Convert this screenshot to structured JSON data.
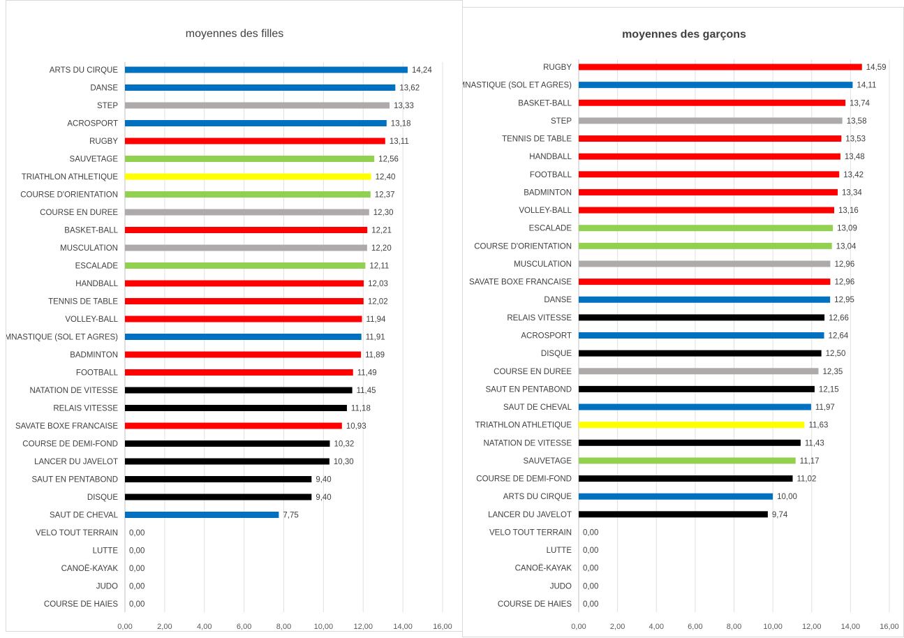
{
  "palette": {
    "red": "#ff0000",
    "blue": "#0070c0",
    "gray": "#aeaaaa",
    "green": "#92d050",
    "yellow": "#ffff00",
    "black": "#000000"
  },
  "chart_data": [
    {
      "type": "bar",
      "orientation": "horizontal",
      "title": "moyennes des filles",
      "xlim": [
        0,
        16
      ],
      "ticks": [
        "0,00",
        "2,00",
        "4,00",
        "6,00",
        "8,00",
        "10,00",
        "12,00",
        "14,00",
        "16,00"
      ],
      "grid": true,
      "categories": [
        "ARTS DU CIRQUE",
        "DANSE",
        "STEP",
        "ACROSPORT",
        "RUGBY",
        "SAUVETAGE",
        "TRIATHLON ATHLETIQUE",
        "COURSE D'ORIENTATION",
        "COURSE EN DUREE",
        "BASKET-BALL",
        "MUSCULATION",
        "ESCALADE",
        "HANDBALL",
        "TENNIS DE TABLE",
        "VOLLEY-BALL",
        "GYMNASTIQUE (SOL ET AGRES)",
        "BADMINTON",
        "FOOTBALL",
        "NATATION DE VITESSE",
        "RELAIS VITESSE",
        "SAVATE BOXE FRANCAISE",
        "COURSE DE DEMI-FOND",
        "LANCER DU JAVELOT",
        "SAUT EN PENTABOND",
        "DISQUE",
        "SAUT DE CHEVAL",
        "VELO TOUT TERRAIN",
        "LUTTE",
        "CANOË-KAYAK",
        "JUDO",
        "COURSE DE HAIES"
      ],
      "values": [
        14.24,
        13.62,
        13.33,
        13.18,
        13.11,
        12.56,
        12.4,
        12.37,
        12.3,
        12.21,
        12.2,
        12.11,
        12.03,
        12.02,
        11.94,
        11.91,
        11.89,
        11.49,
        11.45,
        11.18,
        10.93,
        10.32,
        10.3,
        9.4,
        9.4,
        7.75,
        0,
        0,
        0,
        0,
        0
      ],
      "labels": [
        "14,24",
        "13,62",
        "13,33",
        "13,18",
        "13,11",
        "12,56",
        "12,40",
        "12,37",
        "12,30",
        "12,21",
        "12,20",
        "12,11",
        "12,03",
        "12,02",
        "11,94",
        "11,91",
        "11,89",
        "11,49",
        "11,45",
        "11,18",
        "10,93",
        "10,32",
        "10,30",
        "9,40",
        "9,40",
        "7,75",
        "0,00",
        "0,00",
        "0,00",
        "0,00",
        "0,00"
      ],
      "colors": [
        "blue",
        "blue",
        "gray",
        "blue",
        "red",
        "green",
        "yellow",
        "green",
        "gray",
        "red",
        "gray",
        "green",
        "red",
        "red",
        "red",
        "blue",
        "red",
        "red",
        "black",
        "black",
        "red",
        "black",
        "black",
        "black",
        "black",
        "blue",
        "black",
        "black",
        "black",
        "black",
        "black"
      ]
    },
    {
      "type": "bar",
      "orientation": "horizontal",
      "title": "moyennes des garçons",
      "xlim": [
        0,
        16
      ],
      "ticks": [
        "0,00",
        "2,00",
        "4,00",
        "6,00",
        "8,00",
        "10,00",
        "12,00",
        "14,00",
        "16,00"
      ],
      "grid": true,
      "categories": [
        "RUGBY",
        "GYMNASTIQUE (SOL ET AGRES)",
        "BASKET-BALL",
        "STEP",
        "TENNIS DE TABLE",
        "HANDBALL",
        "FOOTBALL",
        "BADMINTON",
        "VOLLEY-BALL",
        "ESCALADE",
        "COURSE D'ORIENTATION",
        "MUSCULATION",
        "SAVATE BOXE FRANCAISE",
        "DANSE",
        "RELAIS VITESSE",
        "ACROSPORT",
        "DISQUE",
        "COURSE EN DUREE",
        "SAUT EN PENTABOND",
        "SAUT DE CHEVAL",
        "TRIATHLON ATHLETIQUE",
        "NATATION DE VITESSE",
        "SAUVETAGE",
        "COURSE DE DEMI-FOND",
        "ARTS DU CIRQUE",
        "LANCER DU JAVELOT",
        "VELO TOUT TERRAIN",
        "LUTTE",
        "CANOË-KAYAK",
        "JUDO",
        "COURSE DE HAIES"
      ],
      "values": [
        14.59,
        14.11,
        13.74,
        13.58,
        13.53,
        13.48,
        13.42,
        13.34,
        13.16,
        13.09,
        13.04,
        12.96,
        12.96,
        12.95,
        12.66,
        12.64,
        12.5,
        12.35,
        12.15,
        11.97,
        11.63,
        11.43,
        11.17,
        11.02,
        10.0,
        9.74,
        0,
        0,
        0,
        0,
        0
      ],
      "labels": [
        "14,59",
        "14,11",
        "13,74",
        "13,58",
        "13,53",
        "13,48",
        "13,42",
        "13,34",
        "13,16",
        "13,09",
        "13,04",
        "12,96",
        "12,96",
        "12,95",
        "12,66",
        "12,64",
        "12,50",
        "12,35",
        "12,15",
        "11,97",
        "11,63",
        "11,43",
        "11,17",
        "11,02",
        "10,00",
        "9,74",
        "0,00",
        "0,00",
        "0,00",
        "0,00",
        "0,00"
      ],
      "colors": [
        "red",
        "blue",
        "red",
        "gray",
        "red",
        "red",
        "red",
        "red",
        "red",
        "green",
        "green",
        "gray",
        "red",
        "blue",
        "black",
        "blue",
        "black",
        "gray",
        "black",
        "blue",
        "yellow",
        "black",
        "green",
        "black",
        "blue",
        "black",
        "black",
        "black",
        "black",
        "black",
        "black"
      ]
    }
  ]
}
